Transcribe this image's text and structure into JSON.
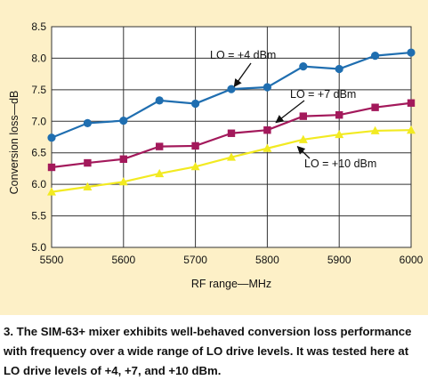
{
  "chart_data": {
    "type": "line",
    "title": "",
    "xlabel": "RF range—MHz",
    "ylabel": "Conversion loss—dB",
    "xlim": [
      5500,
      6000
    ],
    "ylim": [
      5.0,
      8.5
    ],
    "xticks": [
      "5500",
      "5600",
      "5700",
      "5800",
      "5900",
      "6000"
    ],
    "yticks": [
      "5.0",
      "5.5",
      "6.0",
      "6.5",
      "7.0",
      "7.5",
      "8.0",
      "8.5"
    ],
    "grid": true,
    "x": [
      5500,
      5550,
      5600,
      5650,
      5700,
      5750,
      5800,
      5850,
      5900,
      5950,
      6000
    ],
    "series": [
      {
        "name": "LO = +4 dBm",
        "color": "#1f6eb0",
        "marker": "circle",
        "values": [
          6.74,
          6.97,
          7.01,
          7.33,
          7.28,
          7.51,
          7.54,
          7.87,
          7.83,
          8.04,
          8.09
        ]
      },
      {
        "name": "LO = +7 dBm",
        "color": "#a3195b",
        "marker": "square",
        "values": [
          6.27,
          6.34,
          6.4,
          6.6,
          6.61,
          6.81,
          6.86,
          7.08,
          7.1,
          7.22,
          7.29
        ]
      },
      {
        "name": "LO = +10 dBm",
        "color": "#f2ea21",
        "marker": "triangle",
        "values": [
          5.88,
          5.96,
          6.04,
          6.17,
          6.28,
          6.43,
          6.57,
          6.71,
          6.79,
          6.85,
          6.86
        ]
      }
    ],
    "annotations": [
      {
        "text": "LO = +4 dBm",
        "x": 5754,
        "y": 7.55
      },
      {
        "text": "LO = +7 dBm",
        "x": 5812,
        "y": 6.98
      },
      {
        "text": "LO = +10 dBm",
        "x": 5842,
        "y": 6.6
      }
    ]
  },
  "caption": "3. The SIM-63+ mixer exhibits well-behaved conversion loss performance with frequency over a wide range of LO drive levels. It was tested here at LO drive levels of +4, +7, and +10 dBm."
}
